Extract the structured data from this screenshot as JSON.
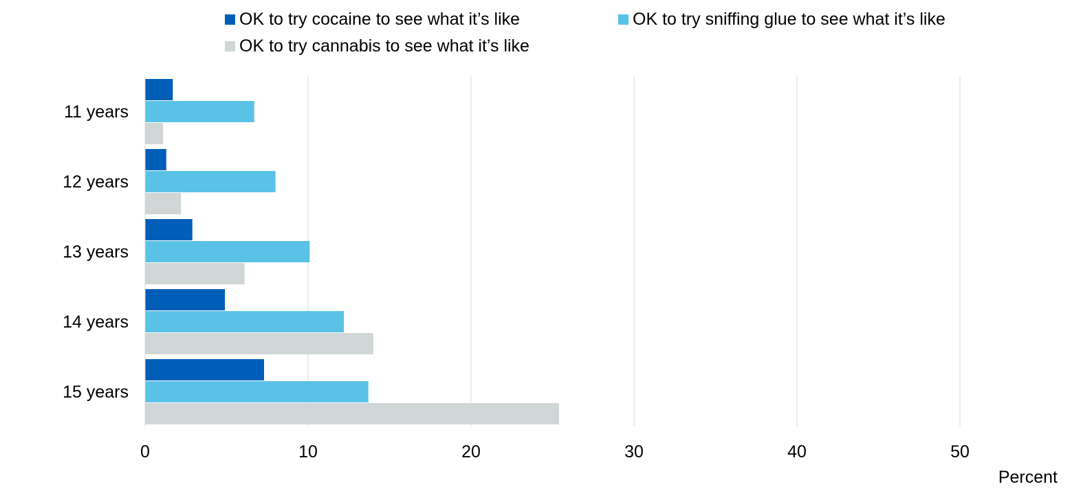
{
  "chart_data": {
    "type": "bar",
    "orientation": "horizontal",
    "categories": [
      "11 years",
      "12 years",
      "13 years",
      "14 years",
      "15 years"
    ],
    "series": [
      {
        "name": "OK to try cocaine to see what it’s like",
        "color": "#005EB8",
        "values": [
          1.7,
          1.3,
          2.9,
          4.9,
          7.3
        ]
      },
      {
        "name": "OK to try sniffing glue to see what it’s like",
        "color": "#5BC2E7",
        "values": [
          6.7,
          8.0,
          10.1,
          12.2,
          13.7
        ]
      },
      {
        "name": "OK to try cannabis to see what it’s like",
        "color": "#D0D5D5",
        "values": [
          1.1,
          2.2,
          6.1,
          14.0,
          25.4
        ]
      }
    ],
    "x_ticks": [
      0,
      10,
      20,
      30,
      40,
      50
    ],
    "xlim": [
      0,
      55
    ],
    "xlabel": "Percent",
    "ylabel": "",
    "title": "",
    "grid": "vertical",
    "legend_position": "top"
  }
}
